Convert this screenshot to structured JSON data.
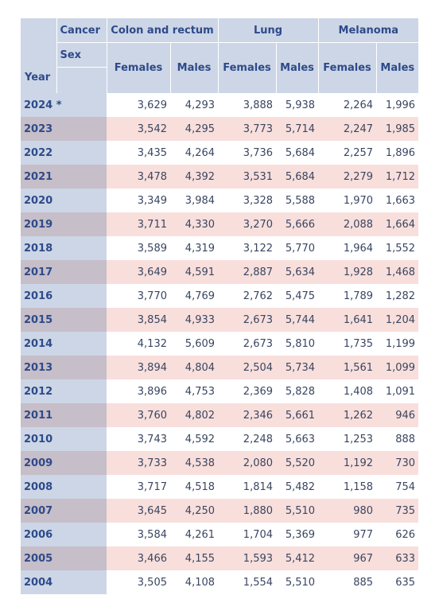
{
  "header": {
    "cancer_label": "Cancer",
    "sex_label": "Sex",
    "year_label": "Year",
    "groups": [
      "Colon and rectum",
      "Lung",
      "Melanoma"
    ],
    "subcols": [
      "Females",
      "Males",
      "Females",
      "Males",
      "Females",
      "Males"
    ]
  },
  "rows": [
    {
      "year": "2024 *",
      "values": [
        "3,629",
        "4,293",
        "3,888",
        "5,938",
        "2,264",
        "1,996"
      ]
    },
    {
      "year": "2023",
      "values": [
        "3,542",
        "4,295",
        "3,773",
        "5,714",
        "2,247",
        "1,985"
      ]
    },
    {
      "year": "2022",
      "values": [
        "3,435",
        "4,264",
        "3,736",
        "5,684",
        "2,257",
        "1,896"
      ]
    },
    {
      "year": "2021",
      "values": [
        "3,478",
        "4,392",
        "3,531",
        "5,684",
        "2,279",
        "1,712"
      ]
    },
    {
      "year": "2020",
      "values": [
        "3,349",
        "3,984",
        "3,328",
        "5,588",
        "1,970",
        "1,663"
      ]
    },
    {
      "year": "2019",
      "values": [
        "3,711",
        "4,330",
        "3,270",
        "5,666",
        "2,088",
        "1,664"
      ]
    },
    {
      "year": "2018",
      "values": [
        "3,589",
        "4,319",
        "3,122",
        "5,770",
        "1,964",
        "1,552"
      ]
    },
    {
      "year": "2017",
      "values": [
        "3,649",
        "4,591",
        "2,887",
        "5,634",
        "1,928",
        "1,468"
      ]
    },
    {
      "year": "2016",
      "values": [
        "3,770",
        "4,769",
        "2,762",
        "5,475",
        "1,789",
        "1,282"
      ]
    },
    {
      "year": "2015",
      "values": [
        "3,854",
        "4,933",
        "2,673",
        "5,744",
        "1,641",
        "1,204"
      ]
    },
    {
      "year": "2014",
      "values": [
        "4,132",
        "5,609",
        "2,673",
        "5,810",
        "1,735",
        "1,199"
      ]
    },
    {
      "year": "2013",
      "values": [
        "3,894",
        "4,804",
        "2,504",
        "5,734",
        "1,561",
        "1,099"
      ]
    },
    {
      "year": "2012",
      "values": [
        "3,896",
        "4,753",
        "2,369",
        "5,828",
        "1,408",
        "1,091"
      ]
    },
    {
      "year": "2011",
      "values": [
        "3,760",
        "4,802",
        "2,346",
        "5,661",
        "1,262",
        "946"
      ]
    },
    {
      "year": "2010",
      "values": [
        "3,743",
        "4,592",
        "2,248",
        "5,663",
        "1,253",
        "888"
      ]
    },
    {
      "year": "2009",
      "values": [
        "3,733",
        "4,538",
        "2,080",
        "5,520",
        "1,192",
        "730"
      ]
    },
    {
      "year": "2008",
      "values": [
        "3,717",
        "4,518",
        "1,814",
        "5,482",
        "1,158",
        "754"
      ]
    },
    {
      "year": "2007",
      "values": [
        "3,645",
        "4,250",
        "1,880",
        "5,510",
        "980",
        "735"
      ]
    },
    {
      "year": "2006",
      "values": [
        "3,584",
        "4,261",
        "1,704",
        "5,369",
        "977",
        "626"
      ]
    },
    {
      "year": "2005",
      "values": [
        "3,466",
        "4,155",
        "1,593",
        "5,412",
        "967",
        "633"
      ]
    },
    {
      "year": "2004",
      "values": [
        "3,505",
        "4,108",
        "1,554",
        "5,510",
        "885",
        "635"
      ]
    }
  ],
  "colors": {
    "header_bg": "#ccd6e6",
    "header_text": "#2e4a8a",
    "year_alt_bg": "#c6bec8",
    "row_alt_bg": "#f8dfdc",
    "cell_text": "#3a4560"
  }
}
